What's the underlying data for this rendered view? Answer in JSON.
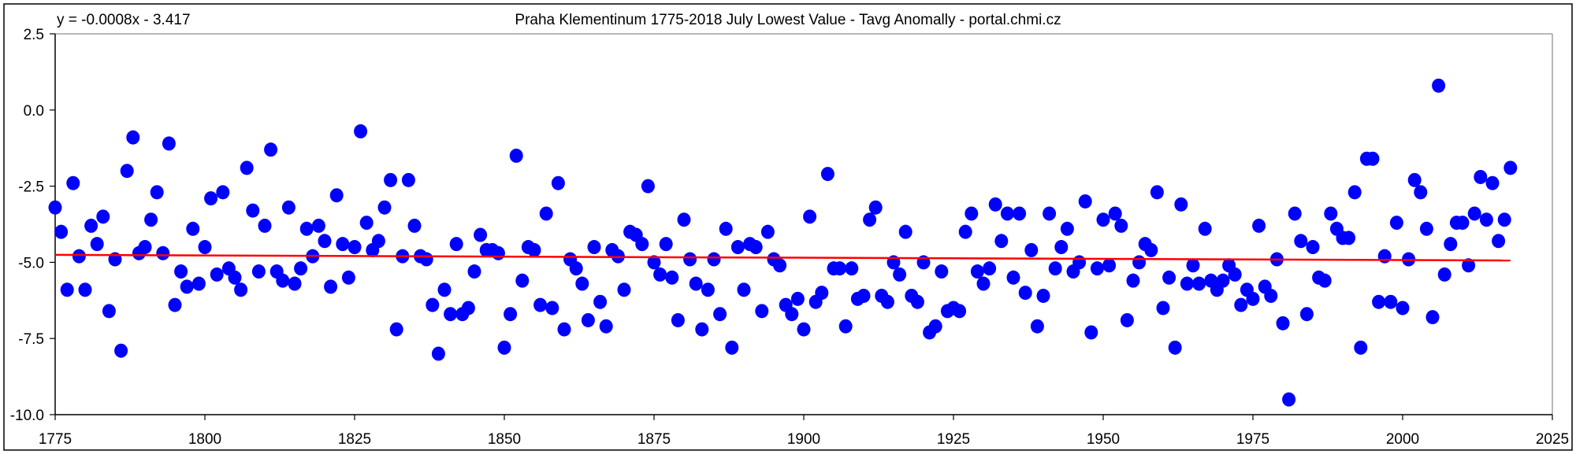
{
  "chart_data": {
    "type": "scatter",
    "title": "Praha Klementinum 1775-2018 July Lowest Value - Tavg Anomally - portal.chmi.cz",
    "trendline_label": "y = -0.0008x - 3.417",
    "xlabel": "",
    "ylabel": "",
    "xlim": [
      1775,
      2025
    ],
    "ylim": [
      -10,
      2.5
    ],
    "x_ticks": [
      "1775",
      "1800",
      "1825",
      "1850",
      "1875",
      "1900",
      "1925",
      "1950",
      "1975",
      "2000",
      "2025"
    ],
    "y_ticks": [
      "2.5",
      "0.0",
      "-2.5",
      "-5.0",
      "-7.5",
      "-10.0"
    ],
    "grid": false,
    "legend": "none",
    "colors": {
      "points": "#0000ff",
      "trendline": "#ff0000",
      "frame": "#a0a0a0"
    },
    "x_start": 1775,
    "values": [
      -3.2,
      -4.0,
      -5.9,
      -2.4,
      -4.8,
      -5.9,
      -3.8,
      -4.4,
      -3.5,
      -6.6,
      -4.9,
      -7.9,
      -2.0,
      -0.9,
      -4.7,
      -4.5,
      -3.6,
      -2.7,
      -4.7,
      -1.1,
      -6.4,
      -5.3,
      -5.8,
      -3.9,
      -5.7,
      -4.5,
      -2.9,
      -5.4,
      -2.7,
      -5.2,
      -5.5,
      -5.9,
      -1.9,
      -3.3,
      -5.3,
      -3.8,
      -1.3,
      -5.3,
      -5.6,
      -3.2,
      -5.7,
      -5.2,
      -3.9,
      -4.8,
      -3.8,
      -4.3,
      -5.8,
      -2.8,
      -4.4,
      -5.5,
      -4.5,
      -0.7,
      -3.7,
      -4.6,
      -4.3,
      -3.2,
      -2.3,
      -7.2,
      -4.8,
      -2.3,
      -3.8,
      -4.8,
      -4.9,
      -6.4,
      -8.0,
      -5.9,
      -6.7,
      -4.4,
      -6.7,
      -6.5,
      -5.3,
      -4.1,
      -4.6,
      -4.6,
      -4.7,
      -7.8,
      -6.7,
      -1.5,
      -5.6,
      -4.5,
      -4.6,
      -6.4,
      -3.4,
      -6.5,
      -2.4,
      -7.2,
      -4.9,
      -5.2,
      -5.7,
      -6.9,
      -4.5,
      -6.3,
      -7.1,
      -4.6,
      -4.8,
      -5.9,
      -4.0,
      -4.1,
      -4.4,
      -2.5,
      -5.0,
      -5.4,
      -4.4,
      -5.5,
      -6.9,
      -3.6,
      -4.9,
      -5.7,
      -7.2,
      -5.9,
      -4.9,
      -6.7,
      -3.9,
      -7.8,
      -4.5,
      -5.9,
      -4.4,
      -4.5,
      -6.6,
      -4.0,
      -4.9,
      -5.1,
      -6.4,
      -6.7,
      -6.2,
      -7.2,
      -3.5,
      -6.3,
      -6.0,
      -2.1,
      -5.2,
      -5.2,
      -7.1,
      -5.2,
      -6.2,
      -6.1,
      -3.6,
      -3.2,
      -6.1,
      -6.3,
      -5.0,
      -5.4,
      -4.0,
      -6.1,
      -6.3,
      -5.0,
      -7.3,
      -7.1,
      -5.3,
      -6.6,
      -6.5,
      -6.6,
      -4.0,
      -3.4,
      -5.3,
      -5.7,
      -5.2,
      -3.1,
      -4.3,
      -3.4,
      -5.5,
      -3.4,
      -6.0,
      -4.6,
      -7.1,
      -6.1,
      -3.4,
      -5.2,
      -4.5,
      -3.9,
      -5.3,
      -5.0,
      -3.0,
      -7.3,
      -5.2,
      -3.6,
      -5.1,
      -3.4,
      -3.8,
      -6.9,
      -5.6,
      -5.0,
      -4.4,
      -4.6,
      -2.7,
      -6.5,
      -5.5,
      -7.8,
      -3.1,
      -5.7,
      -5.1,
      -5.7,
      -3.9,
      -5.6,
      -5.9,
      -5.6,
      -5.1,
      -5.4,
      -6.4,
      -5.9,
      -6.2,
      -3.8,
      -5.8,
      -6.1,
      -4.9,
      -7.0,
      -9.5,
      -3.4,
      -4.3,
      -6.7,
      -4.5,
      -5.5,
      -5.6,
      -3.4,
      -3.9,
      -4.2,
      -4.2,
      -2.7,
      -7.8,
      -1.6,
      -1.6,
      -6.3,
      -4.8,
      -6.3,
      -3.7,
      -6.5,
      -4.9,
      -2.3,
      -2.7,
      -3.9,
      -6.8,
      0.8,
      -5.4,
      -4.4,
      -3.7,
      -3.7,
      -5.1,
      -3.4,
      -2.2,
      -3.6,
      -2.4,
      -4.3,
      -3.6,
      -1.9
    ]
  }
}
